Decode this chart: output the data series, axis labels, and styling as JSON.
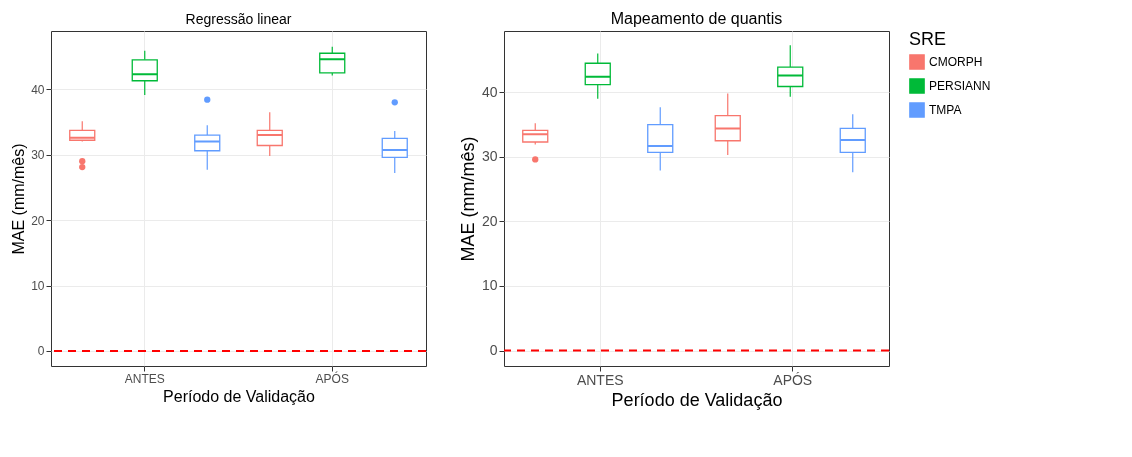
{
  "chart_data": [
    {
      "type": "box",
      "title": "Regressão linear",
      "xlabel": "Período de Validação",
      "ylabel": "MAE (mm/mês)",
      "categories": [
        "ANTES",
        "APÓS"
      ],
      "ylim": [
        -2.3,
        48.9
      ],
      "yticks": [
        0,
        10,
        20,
        30,
        40
      ],
      "grid": true,
      "legend": "right",
      "ref_lines": [
        {
          "axis": "y",
          "value": 0,
          "color": "#ff0000",
          "line_style": "dashed"
        }
      ],
      "series": [
        {
          "name": "CMORPH",
          "color": "#f8766d",
          "boxes": [
            {
              "low": 32.0,
              "q1": 32.2,
              "median": 32.6,
              "q3": 33.7,
              "high": 35.1,
              "outliers": [
                29.0,
                28.1
              ]
            },
            {
              "low": 29.8,
              "q1": 31.4,
              "median": 33.0,
              "q3": 33.7,
              "high": 36.5
            }
          ]
        },
        {
          "name": "PERSIANN",
          "color": "#00ba38",
          "boxes": [
            {
              "low": 39.1,
              "q1": 41.3,
              "median": 42.3,
              "q3": 44.5,
              "high": 45.9
            },
            {
              "low": 42.1,
              "q1": 42.5,
              "median": 44.6,
              "q3": 45.5,
              "high": 46.5
            }
          ]
        },
        {
          "name": "TMPA",
          "color": "#619cff",
          "boxes": [
            {
              "low": 27.7,
              "q1": 30.6,
              "median": 32.0,
              "q3": 33.0,
              "high": 34.5,
              "outliers": [
                38.4
              ]
            },
            {
              "low": 27.2,
              "q1": 29.6,
              "median": 30.7,
              "q3": 32.5,
              "high": 33.6,
              "outliers": [
                38.0
              ]
            }
          ]
        }
      ]
    },
    {
      "type": "box",
      "title": "Mapeamento de quantis",
      "xlabel": "Período de Validação",
      "ylabel": "MAE (mm/mês)",
      "categories": [
        "ANTES",
        "APÓS"
      ],
      "ylim": [
        -2.4,
        49.5
      ],
      "yticks": [
        0,
        10,
        20,
        30,
        40
      ],
      "grid": true,
      "legend": "right",
      "legend_title": "SRE",
      "ref_lines": [
        {
          "axis": "y",
          "value": 0,
          "color": "#ff0000",
          "line_style": "dashed"
        }
      ],
      "series": [
        {
          "name": "CMORPH",
          "color": "#f8766d",
          "boxes": [
            {
              "low": 31.9,
              "q1": 32.3,
              "median": 33.5,
              "q3": 34.1,
              "high": 35.2,
              "outliers": [
                29.6
              ]
            },
            {
              "low": 30.3,
              "q1": 32.5,
              "median": 34.4,
              "q3": 36.4,
              "high": 39.8
            }
          ]
        },
        {
          "name": "PERSIANN",
          "color": "#00ba38",
          "boxes": [
            {
              "low": 39.0,
              "q1": 41.2,
              "median": 42.4,
              "q3": 44.5,
              "high": 46.0
            },
            {
              "low": 39.3,
              "q1": 40.9,
              "median": 42.6,
              "q3": 43.9,
              "high": 47.3
            }
          ]
        },
        {
          "name": "TMPA",
          "color": "#619cff",
          "boxes": [
            {
              "low": 27.9,
              "q1": 30.7,
              "median": 31.7,
              "q3": 35.0,
              "high": 37.7
            },
            {
              "low": 27.6,
              "q1": 30.7,
              "median": 32.6,
              "q3": 34.4,
              "high": 36.6
            }
          ]
        }
      ]
    }
  ]
}
